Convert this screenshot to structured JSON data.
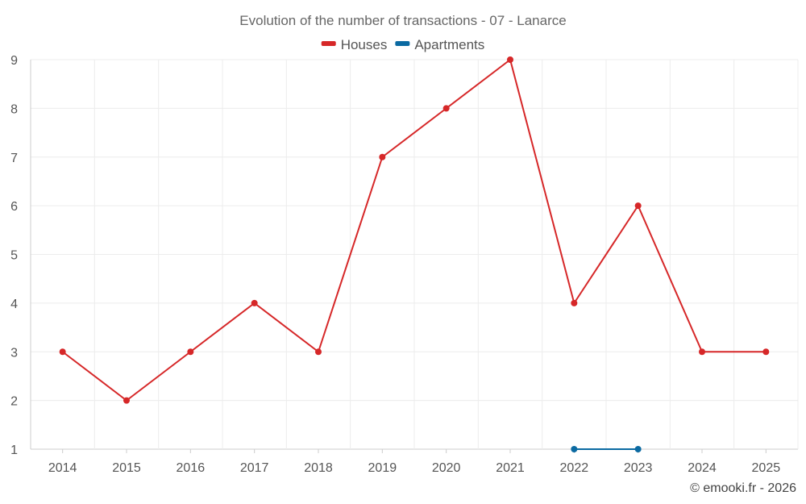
{
  "chart_data": {
    "type": "line",
    "title": "Evolution of the number of transactions - 07 - Lanarce",
    "categories": [
      "2014",
      "2015",
      "2016",
      "2017",
      "2018",
      "2019",
      "2020",
      "2021",
      "2022",
      "2023",
      "2024",
      "2025"
    ],
    "ylim": [
      1,
      9
    ],
    "yticks": [
      1,
      2,
      3,
      4,
      5,
      6,
      7,
      8,
      9
    ],
    "grid": true,
    "legend_position": "top-center",
    "series": [
      {
        "name": "Houses",
        "color": "#d62728",
        "values": [
          3,
          2,
          3,
          4,
          3,
          7,
          8,
          9,
          4,
          6,
          3,
          3
        ]
      },
      {
        "name": "Apartments",
        "color": "#0b6aa2",
        "values": [
          null,
          null,
          null,
          null,
          null,
          null,
          null,
          null,
          1,
          1,
          null,
          null
        ]
      }
    ]
  },
  "footer": {
    "credit": "© emooki.fr - 2026"
  }
}
